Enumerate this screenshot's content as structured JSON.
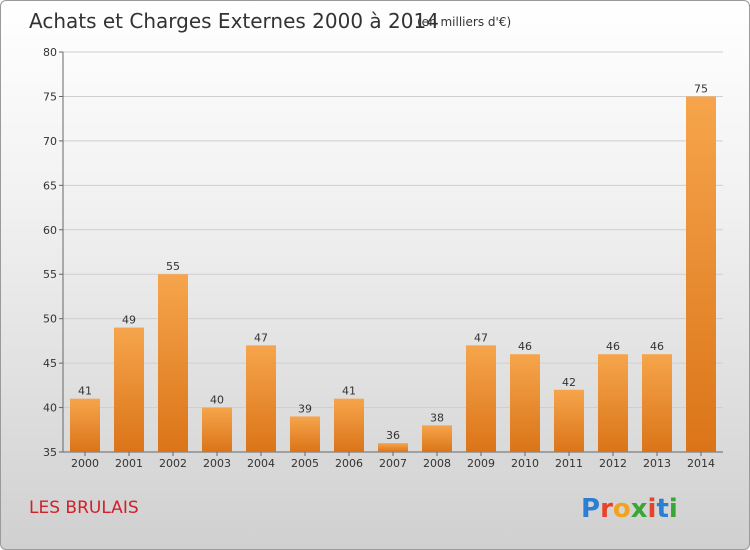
{
  "chart_data": {
    "type": "bar",
    "title": "Achats et Charges Externes 2000 à 2014",
    "subtitle": "(en milliers d'€)",
    "categories": [
      "2000",
      "2001",
      "2002",
      "2003",
      "2004",
      "2005",
      "2006",
      "2007",
      "2008",
      "2009",
      "2010",
      "2011",
      "2012",
      "2013",
      "2014"
    ],
    "values": [
      41,
      49,
      55,
      40,
      47,
      39,
      41,
      36,
      38,
      47,
      46,
      42,
      46,
      46,
      75
    ],
    "ylim": [
      35,
      80
    ],
    "yticks": [
      35,
      40,
      45,
      50,
      55,
      60,
      65,
      70,
      75,
      80
    ],
    "grid": true,
    "bar_color": "#f0952f"
  },
  "footer": {
    "commune": "LES BRULAIS",
    "logo_text": "Proxiti"
  }
}
